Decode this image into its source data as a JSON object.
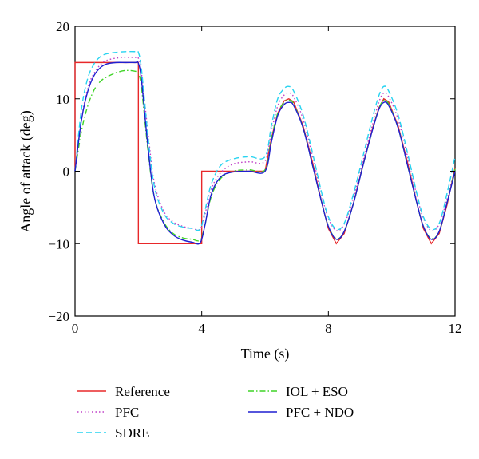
{
  "chart_data": {
    "type": "line",
    "xlabel": "Time (s)",
    "ylabel": "Angle of attack (deg)",
    "xlim": [
      0,
      12
    ],
    "ylim": [
      -20,
      20
    ],
    "xticks": [
      0,
      4,
      8,
      12
    ],
    "yticks": [
      -20,
      -10,
      0,
      10,
      20
    ],
    "grid": false,
    "legend_position": "bottom",
    "series": [
      {
        "name": "Reference",
        "color": "#e8282a",
        "dash": "solid",
        "x": [
          0,
          0,
          2,
          2,
          4,
          4,
          6,
          6.2,
          6.4,
          6.6,
          6.75,
          6.9,
          7.2,
          7.5,
          7.8,
          8.0,
          8.25,
          8.5,
          8.8,
          9.1,
          9.4,
          9.6,
          9.75,
          9.9,
          10.2,
          10.5,
          10.8,
          11.0,
          11.25,
          11.5,
          11.75,
          12.0
        ],
        "y": [
          0,
          15,
          15,
          -10,
          -10,
          0,
          0,
          4.5,
          8.0,
          9.7,
          10.0,
          9.6,
          6.3,
          1.2,
          -4.5,
          -7.9,
          -10.0,
          -8.6,
          -4.3,
          1.0,
          6.0,
          8.8,
          10.0,
          9.6,
          6.3,
          1.2,
          -4.5,
          -7.9,
          -10.0,
          -8.6,
          -4.6,
          0.5
        ]
      },
      {
        "name": "PFC",
        "color": "#c040c8",
        "dash": "dotted",
        "x": [
          0,
          0.2,
          0.4,
          0.6,
          0.8,
          1.0,
          1.3,
          1.6,
          1.9,
          2.0,
          2.1,
          2.3,
          2.5,
          2.8,
          3.1,
          3.4,
          3.7,
          3.95,
          4.1,
          4.3,
          4.6,
          5.0,
          5.5,
          6.0,
          6.2,
          6.4,
          6.6,
          6.75,
          6.9,
          7.2,
          7.5,
          7.8,
          8.0,
          8.25,
          8.5,
          8.8,
          9.1,
          9.4,
          9.6,
          9.75,
          9.9,
          10.2,
          10.5,
          10.8,
          11.0,
          11.25,
          11.5,
          11.75,
          12.0
        ],
        "y": [
          0,
          7,
          11.5,
          13.5,
          14.7,
          15.3,
          15.6,
          15.7,
          15.7,
          15.6,
          13.5,
          5.5,
          -1.5,
          -5.5,
          -7.0,
          -7.6,
          -7.9,
          -8.0,
          -6.0,
          -2.5,
          -0.2,
          1.0,
          1.3,
          1.4,
          5.5,
          9.0,
          10.5,
          10.8,
          10.3,
          7.2,
          2.0,
          -3.5,
          -6.5,
          -8.2,
          -7.3,
          -3.5,
          1.5,
          6.5,
          9.6,
          10.8,
          10.3,
          7.2,
          2.0,
          -3.5,
          -6.5,
          -8.2,
          -7.3,
          -3.8,
          0.5
        ]
      },
      {
        "name": "SDRE",
        "color": "#27d3f0",
        "dash": "dashed",
        "x": [
          0,
          0.2,
          0.4,
          0.6,
          0.8,
          1.0,
          1.3,
          1.6,
          1.9,
          2.0,
          2.1,
          2.3,
          2.5,
          2.8,
          3.1,
          3.4,
          3.7,
          3.95,
          4.1,
          4.3,
          4.6,
          5.0,
          5.5,
          6.0,
          6.2,
          6.4,
          6.6,
          6.75,
          6.9,
          7.2,
          7.5,
          7.8,
          8.0,
          8.25,
          8.5,
          8.8,
          9.1,
          9.4,
          9.6,
          9.75,
          9.9,
          10.2,
          10.5,
          10.8,
          11.0,
          11.25,
          11.5,
          11.75,
          12.0
        ],
        "y": [
          0,
          8.5,
          12.8,
          14.8,
          15.8,
          16.2,
          16.4,
          16.5,
          16.5,
          16.4,
          14.0,
          5.0,
          -2.0,
          -5.8,
          -7.2,
          -7.7,
          -7.9,
          -8.0,
          -5.5,
          -1.8,
          0.8,
          1.7,
          2.0,
          2.0,
          6.3,
          10.0,
          11.4,
          11.7,
          11.1,
          7.8,
          2.5,
          -3.2,
          -6.3,
          -8.0,
          -7.2,
          -3.0,
          2.2,
          7.5,
          10.5,
          11.7,
          11.1,
          7.8,
          2.5,
          -3.2,
          -6.3,
          -8.0,
          -7.2,
          -3.0,
          2.0
        ]
      },
      {
        "name": "IOL + ESO",
        "color": "#3fd426",
        "dash": "dashdot",
        "x": [
          0,
          0.2,
          0.4,
          0.6,
          0.8,
          1.0,
          1.3,
          1.6,
          1.9,
          2.0,
          2.1,
          2.3,
          2.5,
          2.8,
          3.1,
          3.4,
          3.7,
          3.95,
          4.1,
          4.3,
          4.6,
          5.0,
          5.5,
          6.0,
          6.2,
          6.4,
          6.6,
          6.75,
          6.9,
          7.2,
          7.5,
          7.8,
          8.0,
          8.25,
          8.5,
          8.8,
          9.1,
          9.4,
          9.6,
          9.75,
          9.9,
          10.2,
          10.5,
          10.8,
          11.0,
          11.25,
          11.5,
          11.75,
          12.0
        ],
        "y": [
          0,
          5.5,
          9.0,
          11.2,
          12.4,
          13.0,
          13.6,
          13.9,
          13.8,
          13.5,
          11.5,
          3.0,
          -3.5,
          -7.0,
          -8.6,
          -9.2,
          -9.4,
          -9.5,
          -7.5,
          -3.5,
          -1.0,
          0.0,
          0.2,
          0.2,
          4.5,
          8.0,
          9.5,
          9.8,
          9.3,
          6.0,
          0.8,
          -4.5,
          -7.6,
          -9.3,
          -8.3,
          -4.3,
          0.9,
          5.8,
          8.7,
          9.8,
          9.3,
          6.0,
          0.8,
          -4.5,
          -7.6,
          -9.3,
          -8.3,
          -4.3,
          0.3
        ]
      },
      {
        "name": "PFC + NDO",
        "color": "#1f1fd0",
        "dash": "solid",
        "x": [
          0,
          0.2,
          0.4,
          0.6,
          0.8,
          1.0,
          1.3,
          1.6,
          1.9,
          2.0,
          2.1,
          2.3,
          2.5,
          2.8,
          3.1,
          3.4,
          3.7,
          3.95,
          4.1,
          4.3,
          4.6,
          5.0,
          5.5,
          6.0,
          6.2,
          6.4,
          6.6,
          6.75,
          6.9,
          7.2,
          7.5,
          7.8,
          8.0,
          8.25,
          8.5,
          8.8,
          9.1,
          9.4,
          9.6,
          9.75,
          9.9,
          10.2,
          10.5,
          10.8,
          11.0,
          11.25,
          11.5,
          11.75,
          12.0
        ],
        "y": [
          0,
          7.0,
          11.0,
          13.2,
          14.3,
          14.8,
          15.0,
          15.0,
          15.0,
          14.9,
          12.5,
          3.5,
          -3.5,
          -7.2,
          -8.8,
          -9.5,
          -9.8,
          -9.9,
          -7.5,
          -3.2,
          -0.8,
          -0.1,
          0.0,
          0.0,
          4.0,
          7.7,
          9.2,
          9.5,
          9.1,
          6.0,
          0.8,
          -4.5,
          -7.6,
          -9.4,
          -8.3,
          -4.3,
          0.9,
          5.8,
          8.6,
          9.5,
          9.1,
          6.0,
          0.8,
          -4.5,
          -7.6,
          -9.4,
          -8.3,
          -4.3,
          0.0
        ]
      }
    ]
  }
}
